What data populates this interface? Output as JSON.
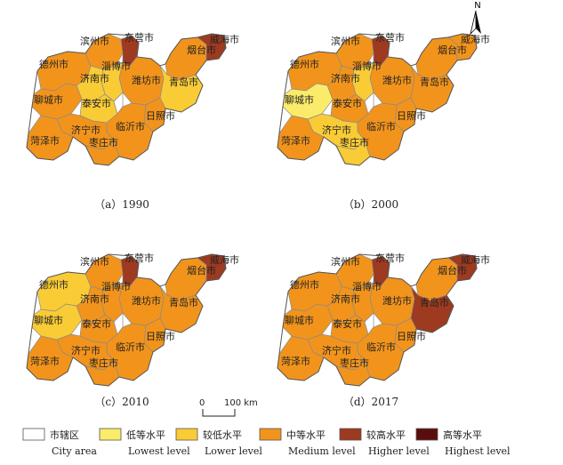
{
  "panels": [
    {
      "caption": "（a）1990",
      "fills": {
        "dezhou": "medium",
        "binzhou": "medium",
        "dongying": "higher",
        "yantai": "medium",
        "weihai": "higher",
        "weifang": "medium",
        "qingdao": "lower",
        "zibo": "lower",
        "jinan": "lower",
        "liaocheng": "medium",
        "taian": "lower",
        "rizhao": "medium",
        "linyi": "medium",
        "jining": "medium",
        "heze": "medium",
        "zaozhuang": "medium",
        "laiwu": "city"
      }
    },
    {
      "caption": "（b）2000",
      "fills": {
        "dezhou": "medium",
        "binzhou": "medium",
        "dongying": "higher",
        "yantai": "medium",
        "weihai": "medium",
        "weifang": "medium",
        "qingdao": "medium",
        "zibo": "lower",
        "jinan": "medium",
        "liaocheng": "lowest",
        "taian": "medium",
        "rizhao": "medium",
        "linyi": "medium",
        "jining": "lower",
        "heze": "medium",
        "zaozhuang": "lower",
        "laiwu": "city"
      }
    },
    {
      "caption": "（c）2010",
      "fills": {
        "dezhou": "lower",
        "binzhou": "medium",
        "dongying": "higher",
        "yantai": "medium",
        "weihai": "higher",
        "weifang": "medium",
        "qingdao": "medium",
        "zibo": "medium",
        "jinan": "medium",
        "liaocheng": "lower",
        "taian": "medium",
        "rizhao": "medium",
        "linyi": "medium",
        "jining": "medium",
        "heze": "medium",
        "zaozhuang": "medium",
        "laiwu": "city"
      }
    },
    {
      "caption": "（d）2017",
      "fills": {
        "dezhou": "medium",
        "binzhou": "medium",
        "dongying": "higher",
        "yantai": "medium",
        "weihai": "higher",
        "weifang": "medium",
        "qingdao": "higher",
        "zibo": "medium",
        "jinan": "medium",
        "liaocheng": "medium",
        "taian": "medium",
        "rizhao": "medium",
        "linyi": "medium",
        "jining": "medium",
        "heze": "medium",
        "zaozhuang": "medium",
        "laiwu": "city"
      }
    }
  ],
  "cities": [
    {
      "id": "binzhou",
      "label": "滨州市"
    },
    {
      "id": "dongying",
      "label": "东营市"
    },
    {
      "id": "yantai",
      "label": "烟台市"
    },
    {
      "id": "weihai",
      "label": "威海市"
    },
    {
      "id": "dezhou",
      "label": "德州市"
    },
    {
      "id": "zibo",
      "label": "淄博市"
    },
    {
      "id": "jinan",
      "label": "济南市"
    },
    {
      "id": "weifang",
      "label": "潍坊市"
    },
    {
      "id": "qingdao",
      "label": "青岛市"
    },
    {
      "id": "liaocheng",
      "label": "聊城市"
    },
    {
      "id": "taian",
      "label": "泰安市"
    },
    {
      "id": "rizhao",
      "label": "日照市"
    },
    {
      "id": "jining",
      "label": "济宁市"
    },
    {
      "id": "linyi",
      "label": "临沂市"
    },
    {
      "id": "heze",
      "label": "菏泽市"
    },
    {
      "id": "zaozhuang",
      "label": "枣庄市"
    }
  ],
  "colors": {
    "city": "#ffffff",
    "lowest": "#fbeb6a",
    "lower": "#f9cc36",
    "medium": "#f2941c",
    "higher": "#9d3a20",
    "highest": "#5a0d0d",
    "border": "#8a8a8a",
    "outline": "#555555"
  },
  "north_label": "N",
  "scale": {
    "zero": "0",
    "end": "100 km"
  },
  "legend": [
    {
      "key": "city",
      "cn": "市辖区",
      "en": "City area"
    },
    {
      "key": "lowest",
      "cn": "低等水平",
      "en": "Lowest level"
    },
    {
      "key": "lower",
      "cn": "较低水平",
      "en": "Lower level"
    },
    {
      "key": "medium",
      "cn": "中等水平",
      "en": "Medium level"
    },
    {
      "key": "higher",
      "cn": "较高水平",
      "en": "Higher level"
    },
    {
      "key": "highest",
      "cn": "高等水平",
      "en": "Highest level"
    }
  ]
}
